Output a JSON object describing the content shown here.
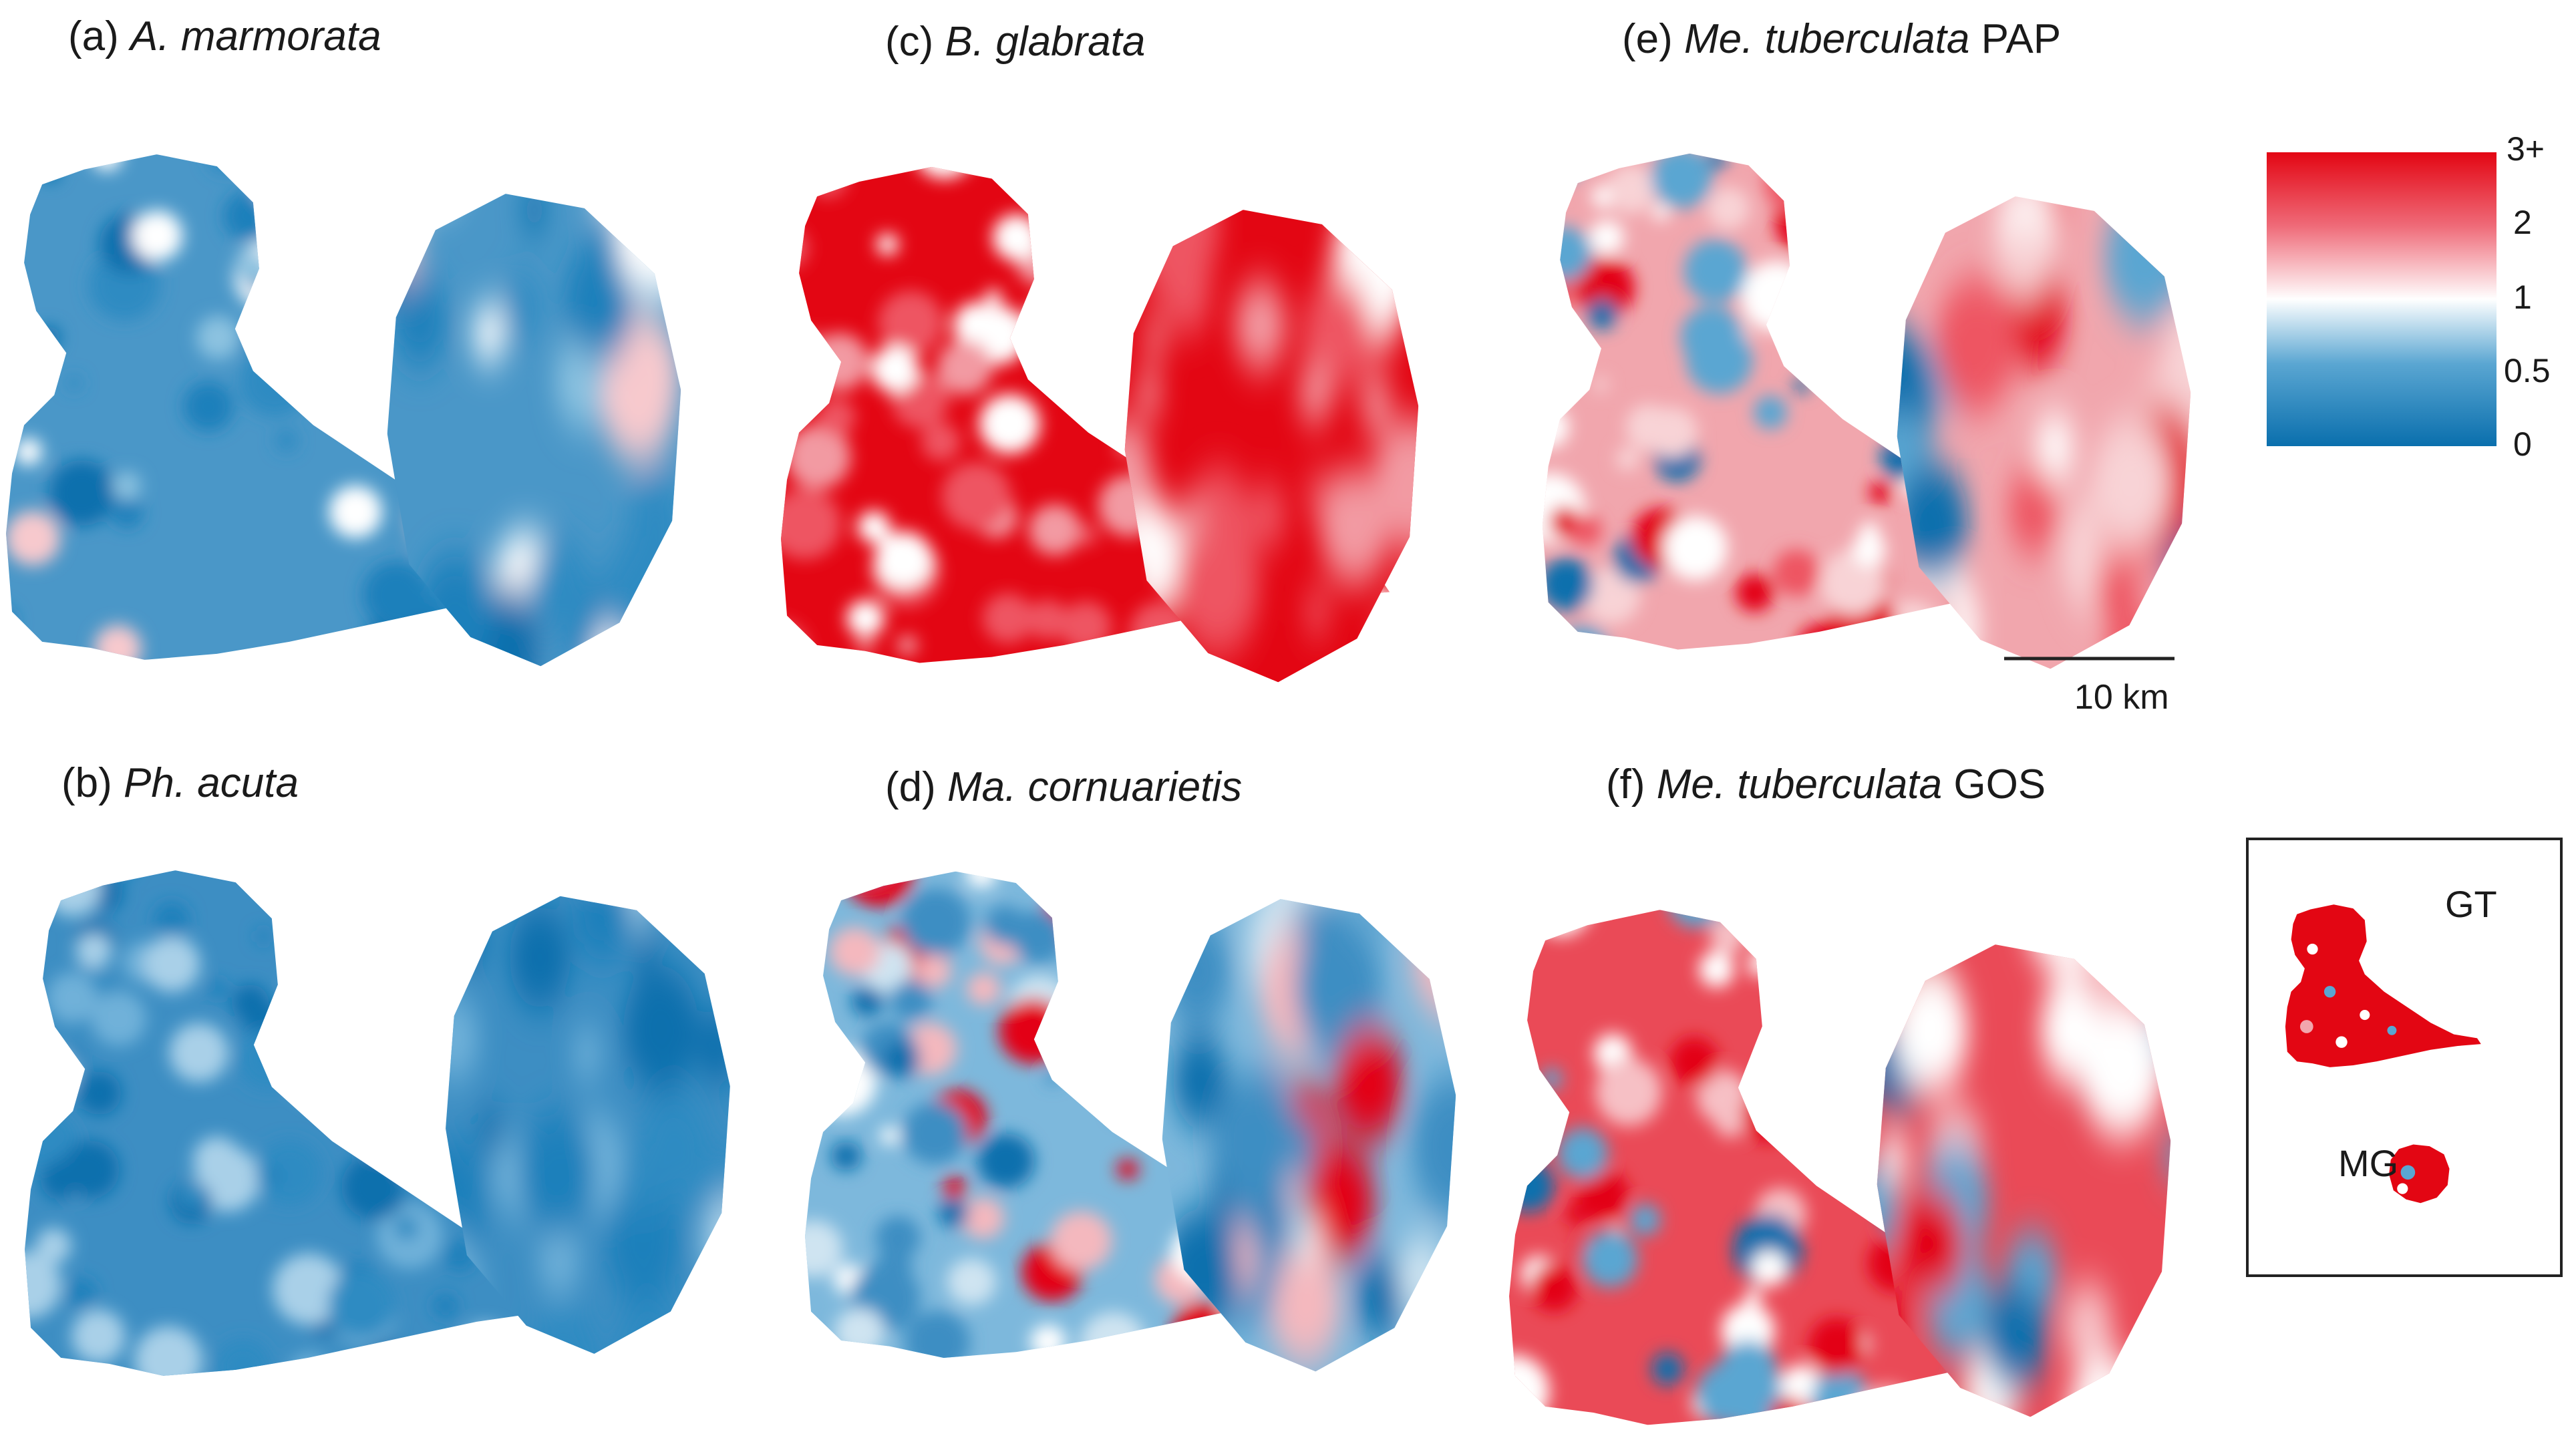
{
  "panels": [
    {
      "id": "a",
      "letter": "(a)",
      "species": "A. marmorata",
      "suffix": "",
      "scheme": "blue"
    },
    {
      "id": "b",
      "letter": "(b)",
      "species": "Ph. acuta",
      "suffix": "",
      "scheme": "blue2"
    },
    {
      "id": "c",
      "letter": "(c)",
      "species": "B. glabrata",
      "suffix": "",
      "scheme": "red"
    },
    {
      "id": "d",
      "letter": "(d)",
      "species": "Ma. cornuarietis",
      "suffix": "",
      "scheme": "mixblue"
    },
    {
      "id": "e",
      "letter": "(e)",
      "species": "Me. tuberculata",
      "suffix": "PAP",
      "scheme": "mixred"
    },
    {
      "id": "f",
      "letter": "(f)",
      "species": "Me. tuberculata",
      "suffix": "GOS",
      "scheme": "red2"
    }
  ],
  "colorbar": {
    "ticks": [
      "3+",
      "2",
      "1",
      "0.5",
      "0"
    ],
    "colors": {
      "high": "#e30613",
      "mid": "#ffffff",
      "low": "#0a6fad"
    }
  },
  "scale_bar": {
    "label": "10 km"
  },
  "inset": {
    "labels": [
      "GT",
      "MG"
    ]
  }
}
